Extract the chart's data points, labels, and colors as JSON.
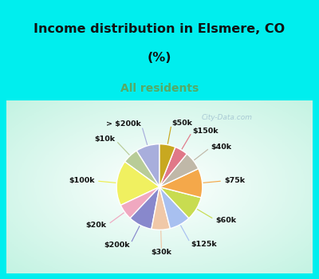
{
  "title_line1": "Income distribution in Elsmere, CO",
  "title_line2": "(%)",
  "subtitle": "All residents",
  "title_color": "#111111",
  "subtitle_color": "#55aa66",
  "bg_cyan": "#00eeee",
  "labels": [
    "> $200k",
    "$10k",
    "$100k",
    "$20k",
    "$200k",
    "$30k",
    "$125k",
    "$60k",
    "$75k",
    "$40k",
    "$150k",
    "$50k"
  ],
  "values": [
    9,
    6,
    17,
    6,
    9,
    7,
    8,
    9,
    11,
    7,
    5,
    6
  ],
  "colors": [
    "#a8aedc",
    "#b8cc98",
    "#f0f060",
    "#f0a8c0",
    "#8888cc",
    "#f0c8a8",
    "#a8c0f0",
    "#c8dc50",
    "#f4a84a",
    "#c0b8a8",
    "#e07888",
    "#c8a820"
  ],
  "line_colors": [
    "#a8aedc",
    "#b8cc98",
    "#eeee50",
    "#f0a8c0",
    "#8888cc",
    "#f0c8a8",
    "#a8c0f0",
    "#c8dc50",
    "#f4a84a",
    "#c0b8a8",
    "#e07888",
    "#c8a820"
  ],
  "watermark": "City-Data.com",
  "start_angle": 90
}
